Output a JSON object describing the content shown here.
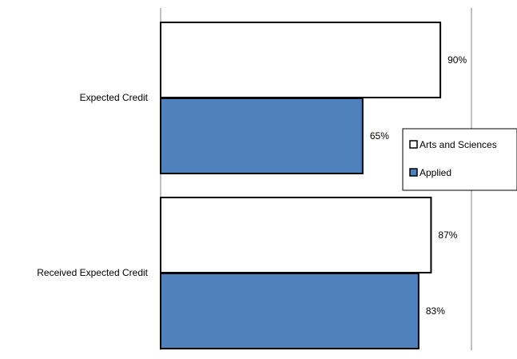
{
  "chart_data": {
    "type": "bar",
    "orientation": "horizontal",
    "categories": [
      "Expected Credit",
      "Received Expected Credit"
    ],
    "series": [
      {
        "name": "Arts and Sciences",
        "values": [
          90,
          87
        ],
        "labels": [
          "90%",
          "87%"
        ],
        "color": "#ffffff"
      },
      {
        "name": "Applied",
        "values": [
          65,
          83
        ],
        "labels": [
          "65%",
          "83%"
        ],
        "color": "#4f81bd"
      }
    ],
    "xlim": [
      0,
      100
    ],
    "grid": false,
    "legend": "right"
  }
}
